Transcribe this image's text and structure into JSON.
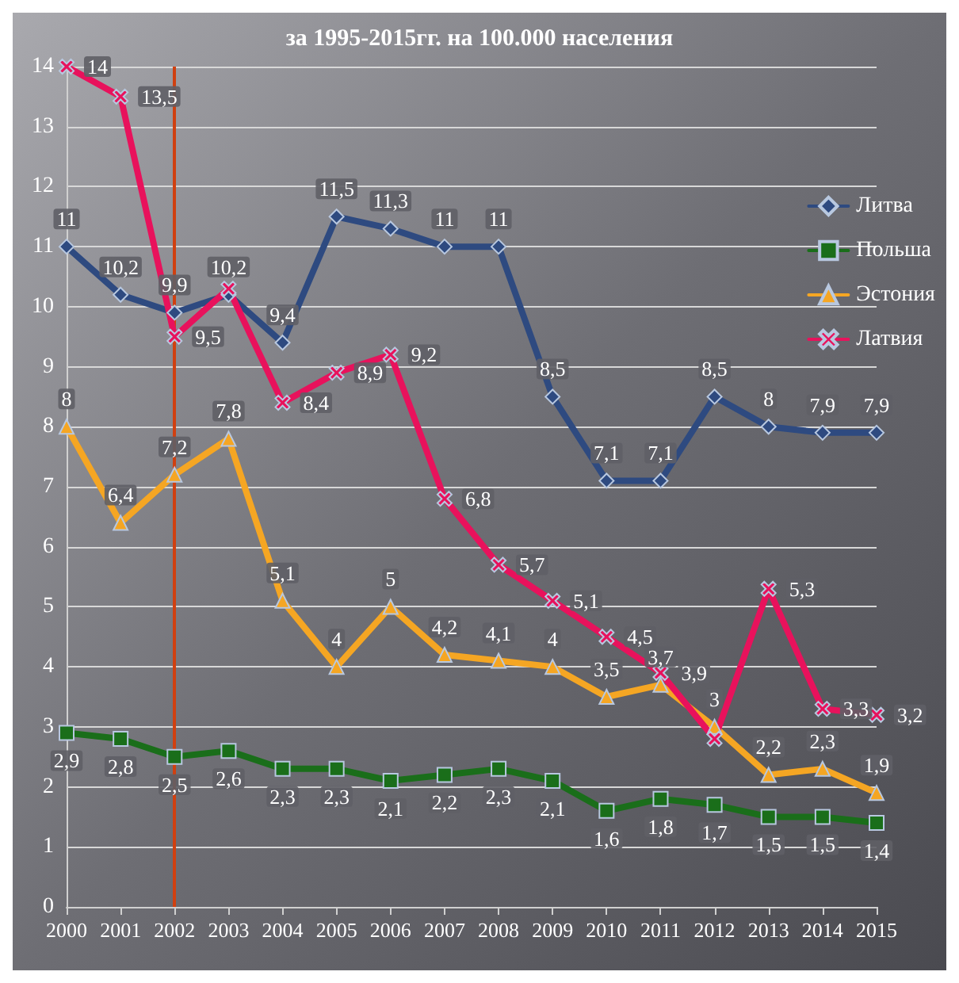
{
  "chart_data": {
    "type": "line",
    "title": "за 1995-2015гг. на 100.000 населения",
    "categories": [
      "2000",
      "2001",
      "2002",
      "2003",
      "2004",
      "2005",
      "2006",
      "2007",
      "2008",
      "2009",
      "2010",
      "2011",
      "2012",
      "2013",
      "2014",
      "2015"
    ],
    "series": [
      {
        "name": "Литва",
        "color": "#2e4a80",
        "marker": "diamond",
        "values": [
          11,
          10.2,
          9.9,
          10.2,
          9.4,
          11.5,
          11.3,
          11,
          11,
          8.5,
          7.1,
          7.1,
          8.5,
          8,
          7.9,
          7.9
        ],
        "value_labels": [
          "11",
          "10,2",
          "9,9",
          "10,2",
          "9,4",
          "11,5",
          "11,3",
          "11",
          "11",
          "8,5",
          "7,1",
          "7,1",
          "8,5",
          "8",
          "7,9",
          "7,9"
        ]
      },
      {
        "name": "Польша",
        "color": "#1a6e1a",
        "marker": "square",
        "values": [
          2.9,
          2.8,
          2.5,
          2.6,
          2.3,
          2.3,
          2.1,
          2.2,
          2.3,
          2.1,
          1.6,
          1.8,
          1.7,
          1.5,
          1.5,
          1.4
        ],
        "value_labels": [
          "2,9",
          "2,8",
          "2,5",
          "2,6",
          "2,3",
          "2,3",
          "2,1",
          "2,2",
          "2,3",
          "2,1",
          "1,6",
          "1,8",
          "1,7",
          "1,5",
          "1,5",
          "1,4"
        ]
      },
      {
        "name": "Эстония",
        "color": "#f5a623",
        "marker": "triangle",
        "values": [
          8,
          6.4,
          7.2,
          7.8,
          5.1,
          4,
          5,
          4.2,
          4.1,
          4,
          3.5,
          3.7,
          3,
          2.2,
          2.3,
          1.9
        ],
        "value_labels": [
          "8",
          "6,4",
          "7,2",
          "7,8",
          "5,1",
          "4",
          "5",
          "4,2",
          "4,1",
          "4",
          "3,5",
          "3,7",
          "3",
          "2,2",
          "2,3",
          "1,9"
        ]
      },
      {
        "name": "Латвия",
        "color": "#e8125c",
        "marker": "cross",
        "values": [
          14,
          13.5,
          9.5,
          10.3,
          8.4,
          8.9,
          9.2,
          6.8,
          5.7,
          5.1,
          4.5,
          3.9,
          2.8,
          5.3,
          3.3,
          3.2
        ],
        "value_labels": [
          "14",
          "13,5",
          "9,5",
          null,
          "8,4",
          "8,9",
          "9,2",
          "6,8",
          "5,7",
          "5,1",
          "4,5",
          "3,9",
          null,
          "5,3",
          "3,3",
          "3,2"
        ]
      }
    ],
    "ylim": [
      0,
      14
    ],
    "yticks": [
      0,
      1,
      2,
      3,
      4,
      5,
      6,
      7,
      8,
      9,
      10,
      11,
      12,
      13,
      14
    ],
    "grid": "y",
    "legend": "right",
    "line_style": "solid",
    "ref_lines": [
      {
        "axis": "x",
        "value": "2002",
        "color": "#d04010"
      }
    ]
  }
}
